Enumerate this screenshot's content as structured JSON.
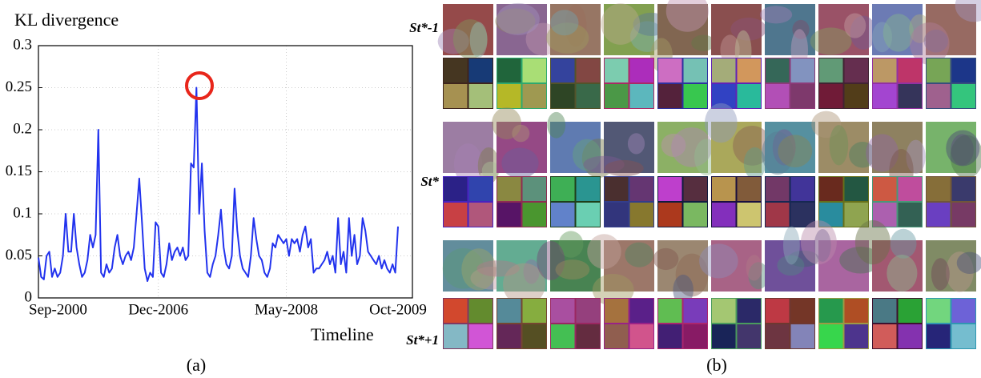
{
  "chart_data": {
    "type": "line",
    "ylabel": "KL divergence",
    "xlabel": "Timeline",
    "categories": [
      "Sep-2000",
      null,
      null,
      null,
      null,
      null,
      null,
      null,
      null,
      null,
      null,
      null,
      null,
      null,
      null,
      null,
      null,
      null,
      null,
      null,
      null,
      null,
      null,
      null,
      null,
      null,
      null,
      null,
      null,
      null,
      null,
      null,
      null,
      null,
      null,
      null,
      null,
      null,
      null,
      null,
      null,
      null,
      null,
      null,
      "Dec-2006",
      null,
      null,
      null,
      null,
      null,
      null,
      null,
      null,
      null,
      null,
      null,
      null,
      null,
      null,
      null,
      null,
      null,
      null,
      null,
      null,
      null,
      null,
      null,
      null,
      null,
      null,
      null,
      null,
      null,
      null,
      null,
      null,
      null,
      null,
      null,
      null,
      null,
      null,
      null,
      null,
      null,
      null,
      null,
      null,
      null,
      null,
      "May-2008",
      null,
      null,
      null,
      null,
      null,
      null,
      null,
      null,
      null,
      null,
      null,
      null,
      null,
      null,
      null,
      null,
      null,
      null,
      null,
      null,
      null,
      null,
      null,
      null,
      null,
      null,
      null,
      null,
      null,
      null,
      null,
      null,
      null,
      null,
      null,
      null,
      null,
      null,
      null,
      null,
      "Oct-2009"
    ],
    "values": [
      0.048,
      0.025,
      0.022,
      0.05,
      0.055,
      0.025,
      0.035,
      0.025,
      0.03,
      0.05,
      0.1,
      0.055,
      0.055,
      0.1,
      0.06,
      0.04,
      0.025,
      0.03,
      0.045,
      0.075,
      0.06,
      0.075,
      0.2,
      0.03,
      0.025,
      0.04,
      0.03,
      0.035,
      0.06,
      0.075,
      0.05,
      0.04,
      0.05,
      0.055,
      0.045,
      0.06,
      0.1,
      0.142,
      0.09,
      0.035,
      0.02,
      0.03,
      0.025,
      0.09,
      0.085,
      0.03,
      0.025,
      0.04,
      0.065,
      0.045,
      0.055,
      0.06,
      0.05,
      0.06,
      0.045,
      0.05,
      0.16,
      0.155,
      0.25,
      0.1,
      0.16,
      0.08,
      0.03,
      0.025,
      0.04,
      0.05,
      0.075,
      0.105,
      0.06,
      0.04,
      0.035,
      0.05,
      0.13,
      0.08,
      0.05,
      0.035,
      0.03,
      0.025,
      0.05,
      0.095,
      0.07,
      0.05,
      0.045,
      0.03,
      0.025,
      0.035,
      0.065,
      0.06,
      0.075,
      0.07,
      0.065,
      0.07,
      0.05,
      0.07,
      0.065,
      0.07,
      0.055,
      0.075,
      0.085,
      0.06,
      0.07,
      0.03,
      0.035,
      0.035,
      0.04,
      0.045,
      0.055,
      0.04,
      0.05,
      0.03,
      0.095,
      0.04,
      0.055,
      0.03,
      0.095,
      0.05,
      0.075,
      0.04,
      0.05,
      0.095,
      0.08,
      0.055,
      0.05,
      0.045,
      0.04,
      0.05,
      0.035,
      0.045,
      0.035,
      0.03,
      0.04,
      0.03,
      0.085
    ],
    "color": "#2233ee",
    "ylim": [
      0,
      0.3
    ],
    "yticks": [
      0,
      0.05,
      0.1,
      0.15,
      0.2,
      0.25,
      0.3
    ],
    "grid": true
  },
  "panels": {
    "a_label": "(a)",
    "b_label": "(b)",
    "row_labels": [
      "St*-1",
      "St*",
      "St*+1"
    ]
  }
}
